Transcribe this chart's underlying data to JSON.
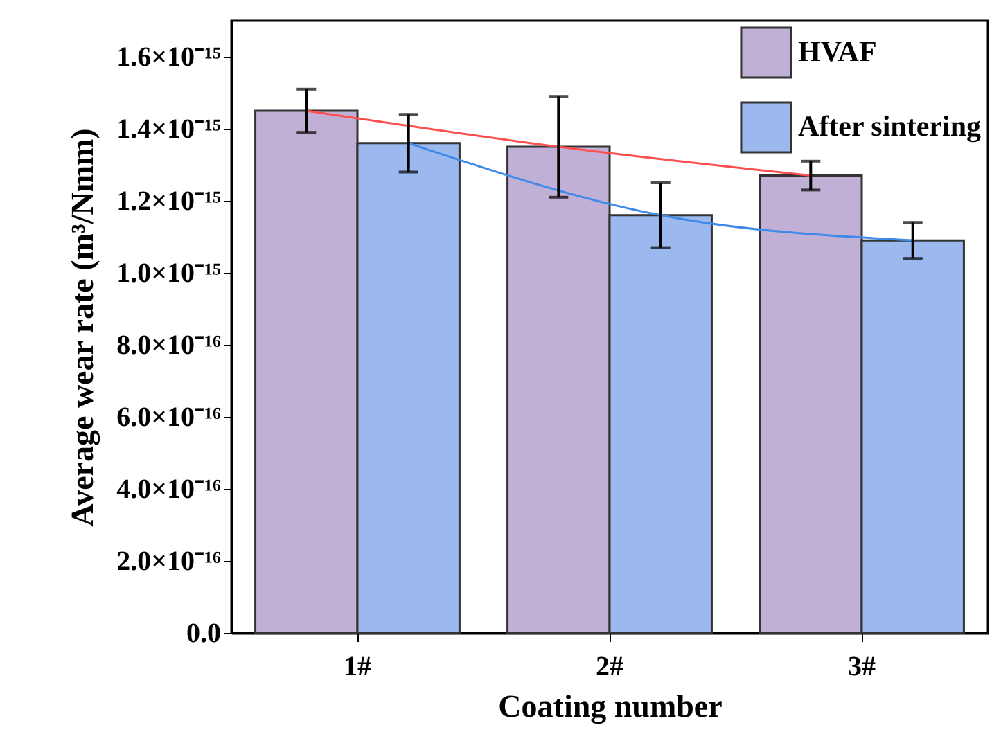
{
  "chart_data": {
    "type": "bar",
    "xlabel": "Coating number",
    "ylabel": "Average wear rate (m³/Nmm)",
    "categories": [
      "1#",
      "2#",
      "3#"
    ],
    "series": [
      {
        "name": "HVAF",
        "color": "#c1b0d6",
        "values": [
          1.45e-15,
          1.35e-15,
          1.27e-15
        ],
        "errors": [
          6e-17,
          1.4e-16,
          4e-17
        ]
      },
      {
        "name": "After sintering",
        "color": "#9bb9ee",
        "values": [
          1.36e-15,
          1.16e-15,
          1.09e-15
        ],
        "errors": [
          8e-17,
          9e-17,
          5e-17
        ]
      },
      {
        "type": "line",
        "color": "#ff5050",
        "x": [
          "1#",
          "2#",
          "3#"
        ],
        "values": [
          1.45e-15,
          1.35e-15,
          1.27e-15
        ]
      },
      {
        "type": "line",
        "color": "#3f8ae8",
        "x": [
          "1#",
          "2#",
          "3#"
        ],
        "values": [
          1.36e-15,
          1.16e-15,
          1.09e-15
        ]
      }
    ],
    "ylim": [
      0,
      1.7e-15
    ],
    "yticks": [
      {
        "value": 0,
        "label": "0.0"
      },
      {
        "value": 2e-16,
        "label": "2.0×10⁻¹⁶"
      },
      {
        "value": 4e-16,
        "label": "4.0×10⁻¹⁶"
      },
      {
        "value": 6e-16,
        "label": "6.0×10⁻¹⁶"
      },
      {
        "value": 8e-16,
        "label": "8.0×10⁻¹⁶"
      },
      {
        "value": 1e-15,
        "label": "1.0×10⁻¹⁵"
      },
      {
        "value": 1.2e-15,
        "label": "1.2×10⁻¹⁵"
      },
      {
        "value": 1.4e-15,
        "label": "1.4×10⁻¹⁵"
      },
      {
        "value": 1.6e-15,
        "label": "1.6×10⁻¹⁵"
      }
    ],
    "legend": "top right",
    "grid": false
  }
}
